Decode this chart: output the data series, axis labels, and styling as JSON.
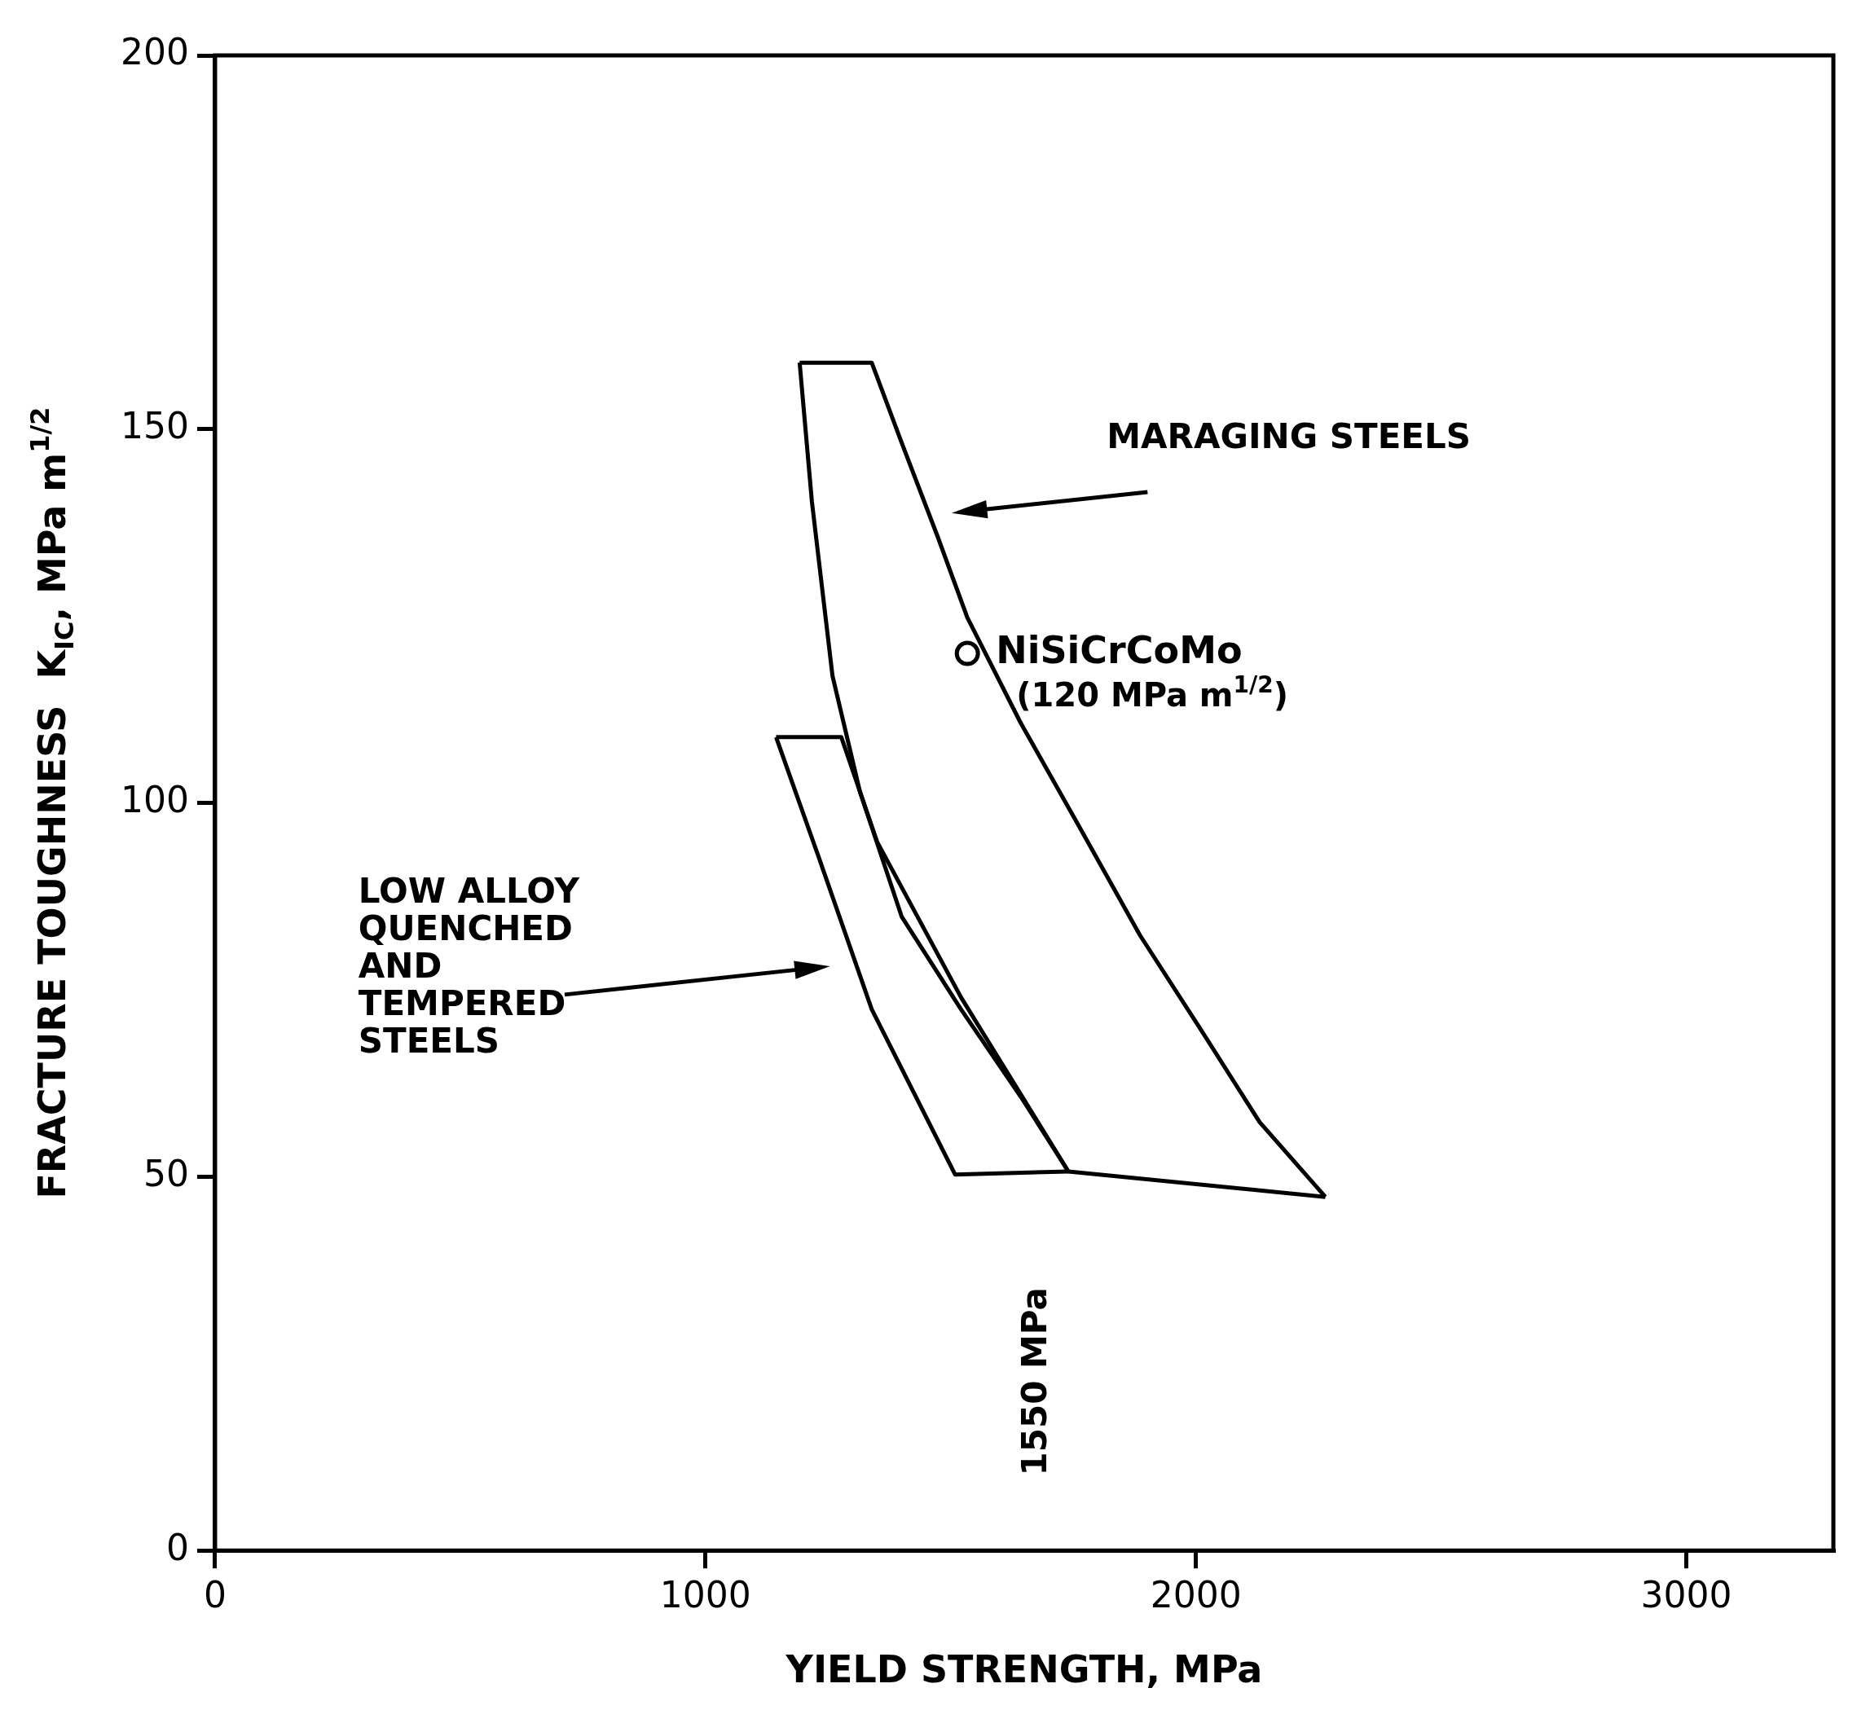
{
  "chart_data": {
    "type": "line",
    "xlabel": "YIELD STRENGTH, MPa",
    "ylabel": "FRACTURE TOUGHNESS  K$_{IC}$, MPa m$^{1/2}$",
    "xlim": [
      0,
      3300
    ],
    "ylim": [
      0,
      200
    ],
    "xticks": [
      0,
      1000,
      2000,
      3000
    ],
    "yticks": [
      0,
      50,
      100,
      150,
      200
    ],
    "grid": false,
    "legend": false,
    "marker": "none",
    "line_style": "solid",
    "series": [
      {
        "color": "#000000",
        "x": [
          1192,
          1339,
          1400,
          1473,
          1534,
          1642,
          1765,
          1886,
          2008,
          2130,
          2264
        ],
        "values": [
          158.9,
          158.9,
          148.2,
          135.7,
          124.8,
          110.8,
          96.5,
          82.3,
          69.9,
          57.3,
          47.3
        ]
      },
      {
        "color": "#000000",
        "x": [
          1192,
          1217,
          1259,
          1315,
          1400,
          1521,
          1643,
          1740,
          2264
        ],
        "values": [
          158.9,
          140.3,
          117,
          101.5,
          84.8,
          72.4,
          60.7,
          50.7,
          47.3
        ]
      },
      {
        "color": "#000000",
        "x": [
          1144,
          1277,
          1350,
          1521,
          1740
        ],
        "values": [
          108.8,
          108.8,
          94.8,
          74,
          50.7
        ]
      },
      {
        "color": "#000000",
        "x": [
          1144,
          1229,
          1339,
          1509,
          1740
        ],
        "values": [
          108.8,
          93.1,
          72.4,
          50.3,
          50.7
        ]
      },
      {
        "type": "scatter",
        "name": "NiSiCrCoMo",
        "marker": "circle",
        "color": "#000000",
        "x": [
          1534
        ],
        "values": [
          120
        ],
        "value_labels": [
          "(120 MPa m$^{1/2}$)"
        ]
      }
    ],
    "annotations": [
      "MARAGING STEELS",
      "LOW ALLOY\nQUENCHED\nAND\nTEMPERED\nSTEELS",
      "1550 MPa"
    ]
  }
}
